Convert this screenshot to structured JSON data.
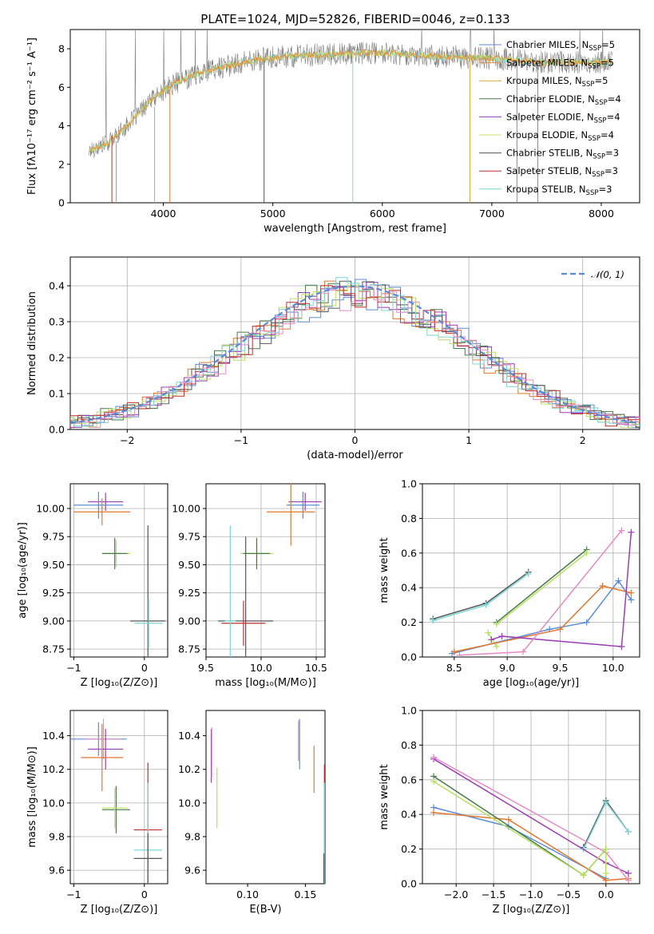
{
  "title": "PLATE=1024, MJD=52826, FIBERID=0046, z=0.133",
  "colors": {
    "c_chab_miles": "#5b8bd6",
    "c_salp_miles": "#e08c3a",
    "c_krou_miles": "#d9a83a",
    "c_chab_elod": "#4a7a4a",
    "c_salp_elod": "#9a3fb3",
    "c_krou_elod": "#c9e26a",
    "c_chab_stel": "#555555",
    "c_salp_stel": "#c03030",
    "c_krou_stel": "#7fd6d6",
    "c_pink": "#e38bc4",
    "c_orange": "#e07830",
    "c_lime": "#b8e060",
    "c_norm": "#5b8bd6"
  },
  "chart_data": [
    {
      "id": "spectrum",
      "type": "line",
      "xlabel": "wavelength [Angstrom, rest frame]",
      "ylabel": "Flux [fλ10⁻¹⁷ erg cm⁻² s⁻¹ A⁻¹]",
      "xlim": [
        3150,
        8350
      ],
      "ylim": [
        0,
        9
      ],
      "xticks": [
        4000,
        5000,
        6000,
        7000,
        8000
      ],
      "yticks": [
        0,
        2,
        4,
        6,
        8
      ],
      "grid": false,
      "legend": "top-right",
      "legend_entries": [
        {
          "label": "Chabrier MILES, N",
          "sub": "SSP",
          "suffix": "=5",
          "color": "#5b8bd6"
        },
        {
          "label": "Salpeter MILES, N",
          "sub": "SSP",
          "suffix": "=5",
          "color": "#e08c3a"
        },
        {
          "label": "Kroupa MILES, N",
          "sub": "SSP",
          "suffix": "=5",
          "color": "#d9a83a"
        },
        {
          "label": "Chabrier ELODIE, N",
          "sub": "SSP",
          "suffix": "=4",
          "color": "#4a7a4a"
        },
        {
          "label": "Salpeter ELODIE, N",
          "sub": "SSP",
          "suffix": "=4",
          "color": "#9a3fb3"
        },
        {
          "label": "Kroupa ELODIE, N",
          "sub": "SSP",
          "suffix": "=4",
          "color": "#c9e26a"
        },
        {
          "label": "Chabrier STELIB, N",
          "sub": "SSP",
          "suffix": "=3",
          "color": "#555555"
        },
        {
          "label": "Salpeter STELIB, N",
          "sub": "SSP",
          "suffix": "=3",
          "color": "#c03030"
        },
        {
          "label": "Kroupa STELIB, N",
          "sub": "SSP",
          "suffix": "=3",
          "color": "#7fd6d6"
        }
      ],
      "continuum": {
        "x": [
          3320,
          3500,
          3700,
          3900,
          4100,
          4300,
          4500,
          4800,
          5100,
          5500,
          6000,
          6500,
          7000,
          7500,
          8100
        ],
        "y": [
          2.7,
          3.1,
          4.2,
          5.4,
          6.2,
          6.7,
          7.0,
          7.4,
          7.6,
          7.7,
          7.8,
          7.6,
          7.5,
          7.3,
          7.3
        ]
      },
      "spikes": [
        {
          "x": 3530,
          "y0": 0,
          "y1": 3.5,
          "color": "#c03030"
        },
        {
          "x": 3570,
          "y0": 0,
          "y1": 3.2,
          "color": "#e08c3a"
        },
        {
          "x": 3920,
          "y0": 0,
          "y1": 5.0,
          "color": "#d9a83a"
        },
        {
          "x": 4060,
          "y0": 0,
          "y1": 5.9,
          "color": "#e07830"
        },
        {
          "x": 4920,
          "y0": 0,
          "y1": 7.4,
          "color": "#555555"
        },
        {
          "x": 5730,
          "y0": 0,
          "y1": 7.6,
          "color": "#7fd6d6"
        },
        {
          "x": 6800,
          "y0": 0,
          "y1": 7.5,
          "color": "#d9a83a"
        },
        {
          "x": 7230,
          "y0": 0,
          "y1": 7.3,
          "color": "#e07830"
        },
        {
          "x": 7420,
          "y0": 0,
          "y1": 7.3,
          "color": "#e07830"
        }
      ]
    },
    {
      "id": "residuals",
      "type": "step",
      "xlabel": "(data-model)/error",
      "ylabel": "Normed distribution",
      "xlim": [
        -2.5,
        2.5
      ],
      "ylim": [
        0,
        0.48
      ],
      "xticks": [
        -2,
        -1,
        0,
        1,
        2
      ],
      "yticks": [
        0.0,
        0.1,
        0.2,
        0.3,
        0.4
      ],
      "grid": true,
      "legend": "top-right",
      "legend_label": "𝒩(0, 1)",
      "bin_width": 0.1
    },
    {
      "id": "age_vs_Z",
      "type": "errorbar",
      "xlabel": "Z [log₁₀(Z/Z⊙)]",
      "ylabel": "age  [log₁₀(age/yr)]",
      "xlim": [
        -1.05,
        0.33
      ],
      "ylim": [
        8.68,
        10.22
      ],
      "xticks": [
        -1,
        0
      ],
      "yticks": [
        8.75,
        9.0,
        9.25,
        9.5,
        9.75,
        10.0
      ],
      "grid": true,
      "points": [
        {
          "x": -0.55,
          "y": 10.06,
          "xe": 0.25,
          "ye": 0.08,
          "color": "#9a3fb3"
        },
        {
          "x": -0.65,
          "y": 10.03,
          "xe": 0.35,
          "ye": 0.12,
          "color": "#5b8bd6"
        },
        {
          "x": -0.6,
          "y": 9.97,
          "xe": 0.4,
          "ye": 0.12,
          "color": "#e07830"
        },
        {
          "x": -0.4,
          "y": 9.6,
          "xe": 0.2,
          "ye": 0.12,
          "color": "#b8e060"
        },
        {
          "x": -0.42,
          "y": 9.6,
          "xe": 0.18,
          "ye": 0.14,
          "color": "#4a7a4a"
        },
        {
          "x": 0.05,
          "y": 9.0,
          "xe": 0.25,
          "ye": 0.85,
          "color": "#555555"
        },
        {
          "x": 0.06,
          "y": 8.98,
          "xe": 0.2,
          "ye": 0.22,
          "color": "#7fd6d6"
        }
      ]
    },
    {
      "id": "age_vs_mass",
      "type": "errorbar",
      "xlabel": "mass [log₁₀(M/M⊙)]",
      "ylabel": "",
      "xlim": [
        9.5,
        10.58
      ],
      "ylim": [
        8.68,
        10.22
      ],
      "xticks": [
        9.5,
        10.0,
        10.5
      ],
      "yticks": [
        8.75,
        9.0,
        9.25,
        9.5,
        9.75,
        10.0
      ],
      "grid": true,
      "points": [
        {
          "x": 10.4,
          "y": 10.06,
          "xe": 0.15,
          "ye": 0.08,
          "color": "#9a3fb3"
        },
        {
          "x": 10.38,
          "y": 10.03,
          "xe": 0.15,
          "ye": 0.12,
          "color": "#5b8bd6"
        },
        {
          "x": 10.27,
          "y": 9.97,
          "xe": 0.22,
          "ye": 0.3,
          "color": "#e07830"
        },
        {
          "x": 9.96,
          "y": 9.6,
          "xe": 0.15,
          "ye": 0.12,
          "color": "#b8e060"
        },
        {
          "x": 9.96,
          "y": 9.6,
          "xe": 0.12,
          "ye": 0.14,
          "color": "#4a7a4a"
        },
        {
          "x": 9.86,
          "y": 9.0,
          "xe": 0.25,
          "ye": 0.75,
          "color": "#555555"
        },
        {
          "x": 9.84,
          "y": 8.98,
          "xe": 0.2,
          "ye": 0.2,
          "color": "#c03030"
        },
        {
          "x": 9.72,
          "y": 9.0,
          "xe": 0.05,
          "ye": 0.85,
          "color": "#7fd6d6"
        }
      ]
    },
    {
      "id": "weight_vs_age",
      "type": "line",
      "xlabel": "age  [log₁₀(age/yr)]",
      "ylabel": "mass weight",
      "xlim": [
        8.2,
        10.25
      ],
      "ylim": [
        0,
        1
      ],
      "xticks": [
        8.5,
        9.0,
        9.5,
        10.0
      ],
      "yticks": [
        0.0,
        0.2,
        0.4,
        0.6,
        0.8,
        1.0
      ],
      "grid": true,
      "series": [
        {
          "x": [
            8.3,
            8.8,
            9.2
          ],
          "y": [
            0.22,
            0.31,
            0.49
          ],
          "color": "#555555"
        },
        {
          "x": [
            8.3,
            8.8,
            9.2
          ],
          "y": [
            0.21,
            0.3,
            0.48
          ],
          "color": "#7fd6d6"
        },
        {
          "x": [
            8.9,
            9.75
          ],
          "y": [
            0.2,
            0.62
          ],
          "color": "#4a7a4a"
        },
        {
          "x": [
            8.9,
            9.75
          ],
          "y": [
            0.19,
            0.6
          ],
          "color": "#b8e060"
        },
        {
          "x": [
            8.82,
            8.9
          ],
          "y": [
            0.14,
            0.06
          ],
          "color": "#b8e060"
        },
        {
          "x": [
            8.48,
            9.4,
            9.75,
            10.05,
            10.17
          ],
          "y": [
            0.02,
            0.16,
            0.2,
            0.44,
            0.33
          ],
          "color": "#5b8bd6"
        },
        {
          "x": [
            8.5,
            9.5,
            9.9,
            10.17
          ],
          "y": [
            0.03,
            0.16,
            0.41,
            0.37
          ],
          "color": "#e07830"
        },
        {
          "x": [
            8.85,
            8.95,
            10.08,
            10.17
          ],
          "y": [
            0.1,
            0.12,
            0.06,
            0.72
          ],
          "color": "#9a3fb3"
        },
        {
          "x": [
            8.55,
            9.15,
            10.08
          ],
          "y": [
            0.01,
            0.03,
            0.73
          ],
          "color": "#e38bc4"
        }
      ]
    },
    {
      "id": "mass_vs_Z",
      "type": "errorbar",
      "xlabel": "Z [log₁₀(Z/Z⊙)]",
      "ylabel": "mass [log₁₀(M/M⊙)]",
      "xlim": [
        -1.05,
        0.33
      ],
      "ylim": [
        9.52,
        10.55
      ],
      "xticks": [
        -1,
        0
      ],
      "yticks": [
        9.6,
        9.8,
        10.0,
        10.2,
        10.4
      ],
      "grid": true,
      "points": [
        {
          "x": -0.65,
          "y": 10.38,
          "xe": 0.4,
          "ye": 0.1,
          "color": "#5b8bd6"
        },
        {
          "x": -0.58,
          "y": 10.38,
          "xe": 0.25,
          "ye": 0.12,
          "color": "#e38bc4"
        },
        {
          "x": -0.55,
          "y": 10.32,
          "xe": 0.25,
          "ye": 0.12,
          "color": "#9a3fb3"
        },
        {
          "x": -0.6,
          "y": 10.27,
          "xe": 0.3,
          "ye": 0.2,
          "color": "#e07830"
        },
        {
          "x": -0.4,
          "y": 9.96,
          "xe": 0.2,
          "ye": 0.14,
          "color": "#4a7a4a"
        },
        {
          "x": -0.42,
          "y": 9.97,
          "xe": 0.18,
          "ye": 0.12,
          "color": "#b8e060"
        },
        {
          "x": 0.05,
          "y": 9.84,
          "xe": 0.2,
          "ye": 0.4,
          "color": "#c03030"
        },
        {
          "x": 0.05,
          "y": 9.72,
          "xe": 0.2,
          "ye": 0.4,
          "color": "#7fd6d6"
        },
        {
          "x": 0.05,
          "y": 9.67,
          "xe": 0.2,
          "ye": 0.15,
          "color": "#555555"
        }
      ]
    },
    {
      "id": "mass_vs_ebv",
      "type": "errorbar",
      "xlabel": "E(B-V)",
      "ylabel": "",
      "xlim": [
        0.064,
        0.167
      ],
      "ylim": [
        9.52,
        10.55
      ],
      "xticks": [
        0.1,
        0.15
      ],
      "yticks": [
        9.6,
        9.8,
        10.0,
        10.2,
        10.4
      ],
      "tick_labels_x": [
        "0.10",
        "0.15"
      ],
      "grid": false,
      "points": [
        {
          "x": 0.0685,
          "y": 10.28,
          "xe": 0,
          "ye": 0.16,
          "color": "#9a3fb3"
        },
        {
          "x": 0.069,
          "y": 10.3,
          "xe": 0,
          "ye": 0.15,
          "color": "#e38bc4"
        },
        {
          "x": 0.0735,
          "y": 10.03,
          "xe": 0,
          "ye": 0.18,
          "color": "#b8e060"
        },
        {
          "x": 0.144,
          "y": 10.37,
          "xe": 0,
          "ye": 0.12,
          "color": "#e38bc4"
        },
        {
          "x": 0.145,
          "y": 10.35,
          "xe": 0,
          "ye": 0.15,
          "color": "#5b8bd6"
        },
        {
          "x": 0.1575,
          "y": 10.2,
          "xe": 0,
          "ye": 0.14,
          "color": "#e07830"
        },
        {
          "x": 0.1665,
          "y": 9.95,
          "xe": 0,
          "ye": 0.28,
          "color": "#c03030"
        },
        {
          "x": 0.1665,
          "y": 9.72,
          "xe": 0,
          "ye": 0.4,
          "color": "#7fd6d6"
        },
        {
          "x": 0.166,
          "y": 9.6,
          "xe": 0,
          "ye": 0.1,
          "color": "#555555"
        }
      ]
    },
    {
      "id": "weight_vs_Z",
      "type": "line",
      "xlabel": "Z [log₁₀(Z/Z⊙)]",
      "ylabel": "mass weight",
      "xlim": [
        -2.45,
        0.45
      ],
      "ylim": [
        0,
        1
      ],
      "xticks": [
        -2.0,
        -1.5,
        -1.0,
        -0.5,
        0.0
      ],
      "yticks": [
        0.0,
        0.2,
        0.4,
        0.6,
        0.8,
        1.0
      ],
      "grid": true,
      "series": [
        {
          "x": [
            -0.3,
            0.0,
            0.3
          ],
          "y": [
            0.21,
            0.48,
            0.3
          ],
          "color": "#555555"
        },
        {
          "x": [
            -0.3,
            0.0,
            0.3
          ],
          "y": [
            0.2,
            0.47,
            0.3
          ],
          "color": "#7fd6d6"
        },
        {
          "x": [
            -2.3,
            -1.3,
            0.0
          ],
          "y": [
            0.44,
            0.33,
            0.03
          ],
          "color": "#5b8bd6"
        },
        {
          "x": [
            -2.3,
            -1.3,
            0.0,
            0.3
          ],
          "y": [
            0.41,
            0.37,
            0.02,
            0.03
          ],
          "color": "#e07830"
        },
        {
          "x": [
            -2.3,
            0.0,
            0.3
          ],
          "y": [
            0.72,
            0.12,
            0.06
          ],
          "color": "#9a3fb3"
        },
        {
          "x": [
            -2.3,
            0.0,
            0.3
          ],
          "y": [
            0.73,
            0.18,
            0.02
          ],
          "color": "#e38bc4"
        },
        {
          "x": [
            -2.3,
            -0.3,
            0.0
          ],
          "y": [
            0.62,
            0.05,
            0.2
          ],
          "color": "#4a7a4a"
        },
        {
          "x": [
            -2.3,
            -0.3,
            0.0,
            0.0
          ],
          "y": [
            0.59,
            0.05,
            0.2,
            0.06
          ],
          "color": "#b8e060"
        }
      ]
    }
  ]
}
